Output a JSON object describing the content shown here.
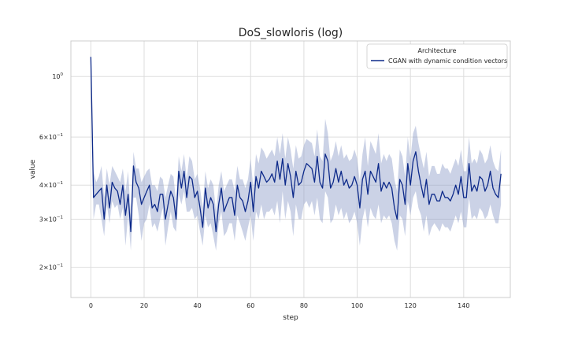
{
  "chart_data": {
    "type": "line",
    "title": "DoS_slowloris (log)",
    "xlabel": "step",
    "ylabel": "value",
    "xlim": [
      -7.5,
      157.5
    ],
    "ylim": [
      0.155,
      1.35
    ],
    "yscale": "log",
    "grid": true,
    "legend": {
      "title": "Architecture",
      "placement": "top-right"
    },
    "x_ticks": [
      {
        "value": 0,
        "label": "0"
      },
      {
        "value": 20,
        "label": "20"
      },
      {
        "value": 40,
        "label": "40"
      },
      {
        "value": 60,
        "label": "60"
      },
      {
        "value": 80,
        "label": "80"
      },
      {
        "value": 100,
        "label": "100"
      },
      {
        "value": 120,
        "label": "120"
      },
      {
        "value": 140,
        "label": "140"
      }
    ],
    "y_ticks": [
      {
        "value": 0.2,
        "base": "2×10",
        "exp": "−1"
      },
      {
        "value": 0.3,
        "base": "3×10",
        "exp": "−1"
      },
      {
        "value": 0.4,
        "base": "4×10",
        "exp": "−1"
      },
      {
        "value": 0.6,
        "base": "6×10",
        "exp": "−1"
      },
      {
        "value": 1.0,
        "base": "10",
        "exp": "0"
      }
    ],
    "x_start": 0,
    "x_step": 1,
    "series": [
      {
        "name": "CGAN with dynamic condition vectors",
        "color": "#0d2a8a",
        "band_color": "#8c9bc7",
        "values": [
          1.18,
          0.36,
          0.37,
          0.38,
          0.39,
          0.3,
          0.4,
          0.33,
          0.41,
          0.39,
          0.38,
          0.34,
          0.4,
          0.31,
          0.37,
          0.27,
          0.47,
          0.41,
          0.39,
          0.34,
          0.36,
          0.38,
          0.4,
          0.33,
          0.34,
          0.32,
          0.37,
          0.37,
          0.3,
          0.34,
          0.38,
          0.36,
          0.3,
          0.45,
          0.39,
          0.45,
          0.36,
          0.43,
          0.42,
          0.36,
          0.38,
          0.33,
          0.28,
          0.39,
          0.33,
          0.36,
          0.34,
          0.27,
          0.34,
          0.39,
          0.32,
          0.34,
          0.36,
          0.36,
          0.31,
          0.4,
          0.36,
          0.35,
          0.32,
          0.35,
          0.41,
          0.32,
          0.43,
          0.39,
          0.45,
          0.43,
          0.41,
          0.42,
          0.44,
          0.41,
          0.49,
          0.42,
          0.5,
          0.4,
          0.48,
          0.43,
          0.36,
          0.45,
          0.4,
          0.41,
          0.45,
          0.48,
          0.47,
          0.46,
          0.41,
          0.51,
          0.41,
          0.39,
          0.52,
          0.49,
          0.39,
          0.41,
          0.46,
          0.41,
          0.45,
          0.4,
          0.42,
          0.39,
          0.4,
          0.43,
          0.4,
          0.33,
          0.42,
          0.45,
          0.37,
          0.45,
          0.43,
          0.41,
          0.48,
          0.38,
          0.41,
          0.39,
          0.41,
          0.39,
          0.33,
          0.3,
          0.42,
          0.4,
          0.34,
          0.48,
          0.4,
          0.49,
          0.53,
          0.45,
          0.4,
          0.36,
          0.42,
          0.34,
          0.37,
          0.37,
          0.35,
          0.35,
          0.38,
          0.36,
          0.36,
          0.35,
          0.37,
          0.4,
          0.37,
          0.43,
          0.36,
          0.36,
          0.48,
          0.38,
          0.4,
          0.38,
          0.43,
          0.42,
          0.38,
          0.4,
          0.45,
          0.39,
          0.37,
          0.36,
          0.44
        ],
        "lower": [
          1.16,
          0.3,
          0.34,
          0.34,
          0.3,
          0.26,
          0.34,
          0.29,
          0.35,
          0.33,
          0.34,
          0.3,
          0.33,
          0.24,
          0.31,
          0.23,
          0.36,
          0.36,
          0.31,
          0.25,
          0.29,
          0.3,
          0.34,
          0.28,
          0.29,
          0.27,
          0.3,
          0.33,
          0.24,
          0.28,
          0.32,
          0.28,
          0.27,
          0.37,
          0.34,
          0.38,
          0.32,
          0.32,
          0.33,
          0.3,
          0.31,
          0.27,
          0.24,
          0.31,
          0.28,
          0.29,
          0.26,
          0.23,
          0.29,
          0.32,
          0.26,
          0.27,
          0.29,
          0.29,
          0.25,
          0.31,
          0.29,
          0.27,
          0.25,
          0.28,
          0.31,
          0.25,
          0.32,
          0.3,
          0.34,
          0.3,
          0.32,
          0.32,
          0.33,
          0.31,
          0.35,
          0.29,
          0.38,
          0.3,
          0.35,
          0.32,
          0.26,
          0.34,
          0.3,
          0.3,
          0.34,
          0.35,
          0.33,
          0.35,
          0.31,
          0.36,
          0.3,
          0.29,
          0.38,
          0.36,
          0.29,
          0.3,
          0.34,
          0.31,
          0.33,
          0.3,
          0.32,
          0.29,
          0.3,
          0.32,
          0.29,
          0.24,
          0.3,
          0.33,
          0.28,
          0.33,
          0.31,
          0.3,
          0.34,
          0.29,
          0.31,
          0.3,
          0.31,
          0.29,
          0.25,
          0.23,
          0.31,
          0.3,
          0.26,
          0.35,
          0.31,
          0.36,
          0.38,
          0.33,
          0.31,
          0.27,
          0.31,
          0.26,
          0.28,
          0.29,
          0.28,
          0.27,
          0.29,
          0.28,
          0.28,
          0.27,
          0.29,
          0.31,
          0.29,
          0.32,
          0.28,
          0.28,
          0.36,
          0.3,
          0.31,
          0.3,
          0.33,
          0.32,
          0.3,
          0.31,
          0.34,
          0.31,
          0.29,
          0.29,
          0.34
        ],
        "upper": [
          1.2,
          0.45,
          0.41,
          0.43,
          0.47,
          0.36,
          0.46,
          0.4,
          0.47,
          0.45,
          0.43,
          0.41,
          0.46,
          0.38,
          0.45,
          0.31,
          0.53,
          0.46,
          0.46,
          0.41,
          0.43,
          0.45,
          0.46,
          0.4,
          0.4,
          0.38,
          0.43,
          0.42,
          0.36,
          0.4,
          0.44,
          0.43,
          0.35,
          0.51,
          0.45,
          0.52,
          0.42,
          0.51,
          0.49,
          0.42,
          0.44,
          0.39,
          0.33,
          0.45,
          0.39,
          0.42,
          0.4,
          0.32,
          0.4,
          0.45,
          0.38,
          0.4,
          0.42,
          0.42,
          0.38,
          0.47,
          0.42,
          0.42,
          0.39,
          0.42,
          0.5,
          0.39,
          0.52,
          0.48,
          0.55,
          0.53,
          0.5,
          0.52,
          0.54,
          0.51,
          0.6,
          0.52,
          0.62,
          0.5,
          0.6,
          0.54,
          0.46,
          0.56,
          0.5,
          0.51,
          0.56,
          0.59,
          0.58,
          0.57,
          0.51,
          0.64,
          0.51,
          0.49,
          0.7,
          0.62,
          0.49,
          0.52,
          0.58,
          0.51,
          0.56,
          0.5,
          0.52,
          0.49,
          0.5,
          0.54,
          0.5,
          0.41,
          0.52,
          0.6,
          0.47,
          0.58,
          0.55,
          0.52,
          0.62,
          0.48,
          0.52,
          0.49,
          0.52,
          0.5,
          0.42,
          0.38,
          0.54,
          0.51,
          0.43,
          0.6,
          0.5,
          0.62,
          0.66,
          0.57,
          0.51,
          0.46,
          0.53,
          0.43,
          0.47,
          0.47,
          0.44,
          0.44,
          0.48,
          0.46,
          0.46,
          0.44,
          0.47,
          0.5,
          0.47,
          0.54,
          0.45,
          0.45,
          0.6,
          0.48,
          0.5,
          0.48,
          0.54,
          0.52,
          0.48,
          0.5,
          0.56,
          0.49,
          0.46,
          0.45,
          0.54
        ]
      }
    ]
  }
}
